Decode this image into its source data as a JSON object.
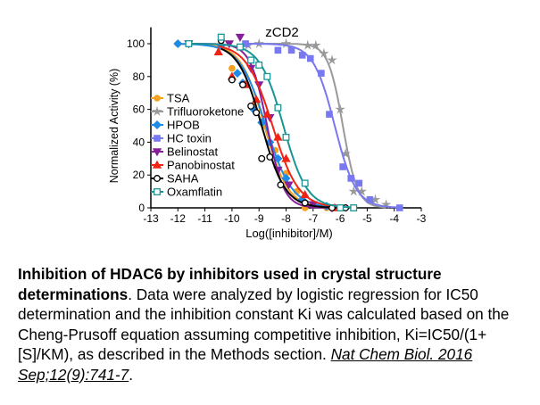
{
  "chart_data": {
    "type": "line",
    "title": "zCD2",
    "xlabel": "Log([inhibitor]/M)",
    "ylabel": "Normalized Activity (%)",
    "xlim": [
      -13,
      -3
    ],
    "ylim": [
      0,
      110
    ],
    "xticks": [
      -13,
      -12,
      -11,
      -10,
      -9,
      -8,
      -7,
      -6,
      -5,
      -4,
      -3
    ],
    "yticks": [
      0,
      20,
      40,
      60,
      80,
      100
    ],
    "legend_position": "left-center",
    "series": [
      {
        "name": "TSA",
        "color": "#f5a01f",
        "marker": "circle",
        "ic50": -8.8,
        "hill": 1.0,
        "points": [
          [
            -12,
            100
          ],
          [
            -10.4,
            99
          ],
          [
            -10,
            85
          ],
          [
            -9.6,
            76
          ],
          [
            -9.2,
            62
          ],
          [
            -8.8,
            50
          ],
          [
            -8.4,
            35
          ],
          [
            -8,
            21
          ],
          [
            -7.6,
            10
          ],
          [
            -7.3,
            0
          ],
          [
            -6.5,
            0
          ],
          [
            -6,
            0
          ]
        ]
      },
      {
        "name": "Trifluoroketone",
        "color": "#999999",
        "marker": "star",
        "ic50": -5.9,
        "hill": 1.6,
        "points": [
          [
            -9.4,
            99
          ],
          [
            -9,
            100
          ],
          [
            -8,
            100
          ],
          [
            -7.2,
            99
          ],
          [
            -6.9,
            99
          ],
          [
            -6.6,
            94
          ],
          [
            -6.3,
            90
          ],
          [
            -6,
            60
          ],
          [
            -5.8,
            33
          ],
          [
            -5.5,
            10
          ],
          [
            -5.2,
            10
          ],
          [
            -4.7,
            5
          ],
          [
            -4.3,
            2
          ]
        ]
      },
      {
        "name": "HPOB",
        "color": "#1e8ce6",
        "marker": "diamond",
        "ic50": -8.75,
        "hill": 0.9,
        "points": [
          [
            -12,
            100
          ],
          [
            -10.4,
            99
          ],
          [
            -9.8,
            82
          ],
          [
            -9.6,
            76
          ],
          [
            -9.2,
            60
          ],
          [
            -8.9,
            52
          ],
          [
            -8.6,
            40
          ],
          [
            -8.3,
            30
          ],
          [
            -8,
            18
          ],
          [
            -7.4,
            5
          ],
          [
            -6.5,
            1
          ]
        ]
      },
      {
        "name": "HC toxin",
        "color": "#7878f0",
        "marker": "square",
        "ic50": -6.2,
        "hill": 1.1,
        "points": [
          [
            -9.5,
            100
          ],
          [
            -8.3,
            96
          ],
          [
            -7.8,
            96
          ],
          [
            -7.4,
            93
          ],
          [
            -7.1,
            91
          ],
          [
            -6.7,
            82
          ],
          [
            -6.4,
            57
          ],
          [
            -5.9,
            25
          ],
          [
            -5.6,
            18
          ],
          [
            -5.3,
            15
          ],
          [
            -4.9,
            5
          ],
          [
            -3.8,
            0
          ]
        ]
      },
      {
        "name": "Belinostat",
        "color": "#86209a",
        "marker": "triangle-down",
        "ic50": -8.7,
        "hill": 1.4,
        "points": [
          [
            -11.6,
            100
          ],
          [
            -10.1,
            100
          ],
          [
            -9.7,
            104
          ],
          [
            -9.3,
            85
          ],
          [
            -9,
            75
          ],
          [
            -8.6,
            55
          ],
          [
            -8.3,
            23
          ],
          [
            -7.9,
            14
          ],
          [
            -7,
            2
          ],
          [
            -6.3,
            0
          ]
        ]
      },
      {
        "name": "Panobinostat",
        "color": "#f02414",
        "marker": "triangle-up",
        "ic50": -8.5,
        "hill": 0.9,
        "points": [
          [
            -10.5,
            95
          ],
          [
            -10,
            80
          ],
          [
            -9.5,
            75
          ],
          [
            -9.1,
            66
          ],
          [
            -8.7,
            57
          ],
          [
            -8.3,
            43
          ],
          [
            -8,
            30
          ],
          [
            -7.3,
            8
          ],
          [
            -6.2,
            0
          ]
        ]
      },
      {
        "name": "SAHA",
        "color": "#000000",
        "marker": "circle-open",
        "ic50": -8.9,
        "hill": 1.0,
        "points": [
          [
            -10.4,
            102
          ],
          [
            -10,
            78
          ],
          [
            -9.6,
            75
          ],
          [
            -9.3,
            62
          ],
          [
            -9.1,
            58
          ],
          [
            -8.9,
            30
          ],
          [
            -8.6,
            31
          ],
          [
            -8.2,
            14
          ],
          [
            -7.3,
            3
          ],
          [
            -6.3,
            0
          ],
          [
            -5.8,
            0
          ]
        ]
      },
      {
        "name": "Oxamflatin",
        "color": "#1a9595",
        "marker": "square-open",
        "ic50": -8.1,
        "hill": 1.0,
        "points": [
          [
            -11.6,
            100
          ],
          [
            -10.4,
            104
          ],
          [
            -9.7,
            98
          ],
          [
            -9.3,
            90
          ],
          [
            -9,
            87
          ],
          [
            -8.7,
            80
          ],
          [
            -8.3,
            61
          ],
          [
            -8,
            43
          ],
          [
            -7.3,
            15
          ],
          [
            -6,
            0
          ],
          [
            -5.5,
            0
          ]
        ]
      }
    ]
  },
  "caption": {
    "title": "Inhibition of HDAC6 by inhibitors used in crystal structure determinations",
    "body": ". Data were analyzed by logistic regression for IC50 determination and the inhibition constant Ki was calculated based on the Cheng-Prusoff equation assuming competitive inhibition, Ki=IC50/(1+[S]/KM), as described in the Methods section. ",
    "reference": "Nat Chem Biol. 2016 Sep;12(9):741-7",
    "end": "."
  }
}
